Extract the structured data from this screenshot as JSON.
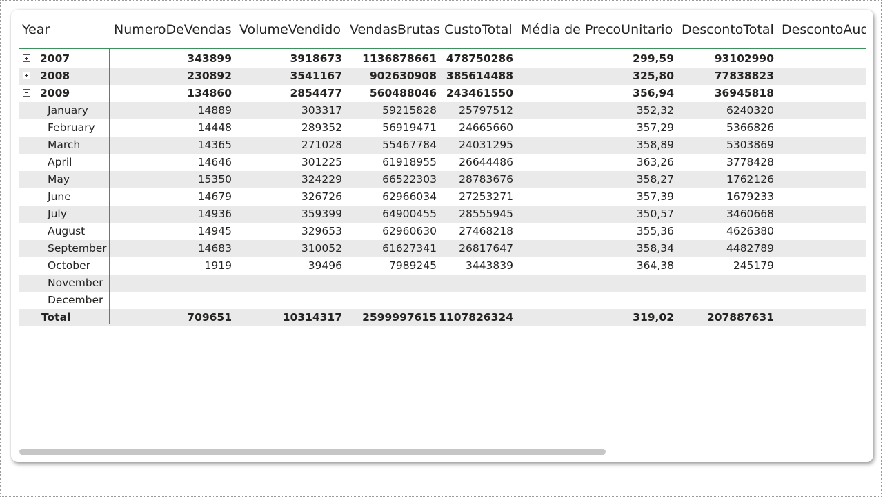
{
  "headers": {
    "year": "Year",
    "numero": "NumeroDeVendas",
    "volume": "VolumeVendido",
    "brutas": "VendasBrutas",
    "custo": "CustoTotal",
    "media": "Média de PrecoUnitario",
    "desconto": "DescontoTotal",
    "descontoAud": "DescontoAud"
  },
  "rows": [
    {
      "label": "2007",
      "numero": "343899",
      "volume": "3918673",
      "brutas": "1136878661",
      "custo": "478750286",
      "media": "299,59",
      "desconto": "93102990"
    },
    {
      "label": "2008",
      "numero": "230892",
      "volume": "3541167",
      "brutas": "902630908",
      "custo": "385614488",
      "media": "325,80",
      "desconto": "77838823"
    },
    {
      "label": "2009",
      "numero": "134860",
      "volume": "2854477",
      "brutas": "560488046",
      "custo": "243461550",
      "media": "356,94",
      "desconto": "36945818"
    },
    {
      "label": "January",
      "numero": "14889",
      "volume": "303317",
      "brutas": "59215828",
      "custo": "25797512",
      "media": "352,32",
      "desconto": "6240320"
    },
    {
      "label": "February",
      "numero": "14448",
      "volume": "289352",
      "brutas": "56919471",
      "custo": "24665660",
      "media": "357,29",
      "desconto": "5366826"
    },
    {
      "label": "March",
      "numero": "14365",
      "volume": "271028",
      "brutas": "55467784",
      "custo": "24031295",
      "media": "358,89",
      "desconto": "5303869"
    },
    {
      "label": "April",
      "numero": "14646",
      "volume": "301225",
      "brutas": "61918955",
      "custo": "26644486",
      "media": "363,26",
      "desconto": "3778428"
    },
    {
      "label": "May",
      "numero": "15350",
      "volume": "324229",
      "brutas": "66522303",
      "custo": "28783676",
      "media": "358,27",
      "desconto": "1762126"
    },
    {
      "label": "June",
      "numero": "14679",
      "volume": "326726",
      "brutas": "62966034",
      "custo": "27253271",
      "media": "357,39",
      "desconto": "1679233"
    },
    {
      "label": "July",
      "numero": "14936",
      "volume": "359399",
      "brutas": "64900455",
      "custo": "28555945",
      "media": "350,57",
      "desconto": "3460668"
    },
    {
      "label": "August",
      "numero": "14945",
      "volume": "329653",
      "brutas": "62960630",
      "custo": "27468218",
      "media": "355,36",
      "desconto": "4626380"
    },
    {
      "label": "September",
      "numero": "14683",
      "volume": "310052",
      "brutas": "61627341",
      "custo": "26817647",
      "media": "358,34",
      "desconto": "4482789"
    },
    {
      "label": "October",
      "numero": "1919",
      "volume": "39496",
      "brutas": "7989245",
      "custo": "3443839",
      "media": "364,38",
      "desconto": "245179"
    },
    {
      "label": "November",
      "numero": "",
      "volume": "",
      "brutas": "",
      "custo": "",
      "media": "",
      "desconto": ""
    },
    {
      "label": "December",
      "numero": "",
      "volume": "",
      "brutas": "",
      "custo": "",
      "media": "",
      "desconto": ""
    },
    {
      "label": "Total",
      "numero": "709651",
      "volume": "10314317",
      "brutas": "2599997615",
      "custo": "1107826324",
      "media": "319,02",
      "desconto": "207887631"
    }
  ],
  "colors": {
    "accent_line": "#3f8f5f",
    "row_shade": "#eaeaea",
    "text": "#252423"
  },
  "expanders": {
    "2007": "plus",
    "2008": "plus",
    "2009": "minus"
  }
}
